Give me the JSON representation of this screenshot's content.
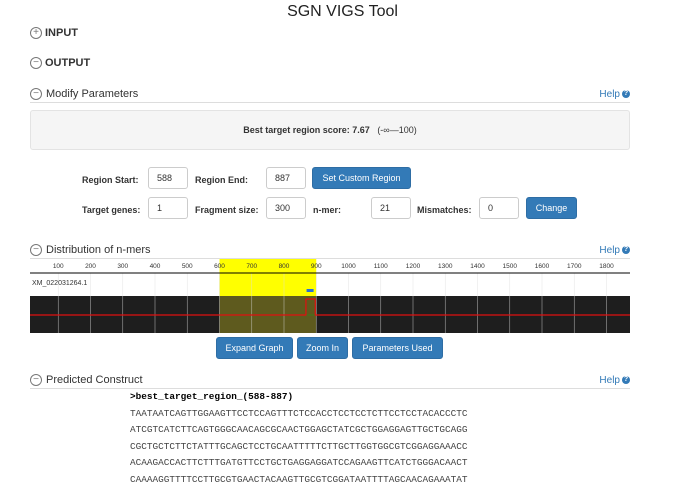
{
  "title": "SGN VIGS Tool",
  "input_label": "INPUT",
  "output_label": "OUTPUT",
  "modify": {
    "title": "Modify Parameters",
    "help": "Help"
  },
  "score": {
    "label": "Best target region score: 7.67",
    "range": "(-∞—100)"
  },
  "form": {
    "region_start_label": "Region Start:",
    "region_start": "588",
    "region_end_label": "Region End:",
    "region_end": "887",
    "set_custom": "Set Custom Region",
    "target_genes_label": "Target genes:",
    "target_genes": "1",
    "fragment_label": "Fragment size:",
    "fragment": "300",
    "nmer_label": "n-mer:",
    "nmer": "21",
    "mismatch_label": "Mismatches:",
    "mismatch": "0",
    "change": "Change"
  },
  "distribution": {
    "title": "Distribution of n-mers",
    "help": "Help",
    "ticks": [
      "100",
      "200",
      "300",
      "400",
      "500",
      "600",
      "700",
      "800",
      "900",
      "1000",
      "1100",
      "1200",
      "1300",
      "1400",
      "1500",
      "1600",
      "1700",
      "1800"
    ],
    "gene": "XM_022031264.1",
    "region": [
      588,
      887
    ],
    "highlight_color": "#ffff00"
  },
  "buttons": {
    "expand": "Expand Graph",
    "zoom": "Zoom In",
    "params": "Parameters Used"
  },
  "construct": {
    "title": "Predicted Construct",
    "help": "Help",
    "header": ">best_target_region_(588-887)",
    "lines": [
      "TAATAATCAGTTGGAAGTTCCTCCAGTTTCTCCACCTCCTCCTCTTCCTCCTACACCCTC",
      "ATCGTCATCTTCAGTGGGCAACAGCGCAACTGGAGCTATCGCTGGAGGAGTTGCTGCAGG",
      "CGCTGCTCTTCTATTTGCAGCTCCTGCAATTTTTCTTGCTTGGTGGCGTCGGAGGAAACC",
      "ACAAGACCACTTCTTTGATGTTCCTGCTGAGGAGGATCCAGAAGTTCATCTGGGACAACT",
      "CAAAAGGTTTTCCTTGCGTGAACTACAAGTTGCGTCGGATAATTTTAGCAACAGAAATAT"
    ]
  }
}
